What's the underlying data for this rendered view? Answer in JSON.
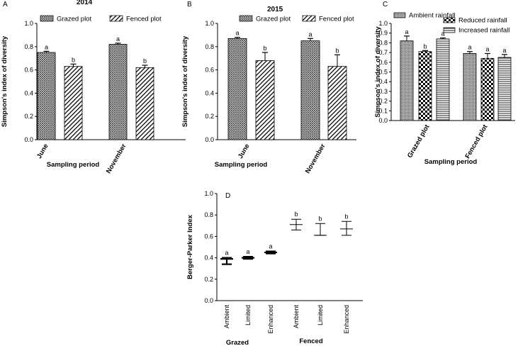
{
  "chart_data": [
    {
      "type": "bar",
      "panel": "A",
      "title": "2014",
      "xlabel": "Sampling period",
      "ylabel": "Simpson's index of diversity",
      "ylim": [
        0,
        1.0
      ],
      "yticks": [
        "0.0",
        "0.2",
        "0.4",
        "0.6",
        "0.8",
        "1.0"
      ],
      "categories": [
        "June",
        "November"
      ],
      "series": [
        {
          "name": "Grazed plot",
          "pattern": "crosshatch",
          "values": [
            0.75,
            0.82
          ],
          "errors": [
            0.01,
            0.01
          ],
          "labels": [
            "a",
            "a"
          ]
        },
        {
          "name": "Fenced plot",
          "pattern": "diagonal",
          "values": [
            0.63,
            0.62
          ],
          "errors": [
            0.02,
            0.02
          ],
          "labels": [
            "b",
            "b"
          ]
        }
      ]
    },
    {
      "type": "bar",
      "panel": "B",
      "title": "2015",
      "xlabel": "Sampling period",
      "ylabel": "Simpson's index of diversity",
      "ylim": [
        0,
        1.0
      ],
      "yticks": [
        "0.0",
        "0.2",
        "0.4",
        "0.6",
        "0.8",
        "1.0"
      ],
      "categories": [
        "June",
        "November"
      ],
      "series": [
        {
          "name": "Grazed plot",
          "pattern": "crosshatch",
          "values": [
            0.87,
            0.85
          ],
          "errors": [
            0.01,
            0.02
          ],
          "labels": [
            "a",
            "a"
          ]
        },
        {
          "name": "Fenced plot",
          "pattern": "diagonal",
          "values": [
            0.68,
            0.63
          ],
          "errors": [
            0.07,
            0.1
          ],
          "labels": [
            "b",
            "b"
          ]
        }
      ]
    },
    {
      "type": "bar",
      "panel": "C",
      "title": "",
      "xlabel": "Sampling period",
      "ylabel": "Simpson's index of diversity",
      "ylim": [
        0,
        1.0
      ],
      "yticks": [
        "0.0",
        "0.1",
        "0.2",
        "0.3",
        "0.4",
        "0.5",
        "0.6",
        "0.7",
        "0.8",
        "0.9",
        "1.0"
      ],
      "categories": [
        "Grazed plot",
        "Fenced plot"
      ],
      "series": [
        {
          "name": "Ambient rainfall",
          "pattern": "dense",
          "values": [
            0.82,
            0.69
          ],
          "errors": [
            0.05,
            0.02
          ],
          "labels": [
            "a",
            "a"
          ]
        },
        {
          "name": "Reduced rainfall",
          "pattern": "checker",
          "values": [
            0.71,
            0.64
          ],
          "errors": [
            0.01,
            0.05
          ],
          "labels": [
            "b",
            "a"
          ]
        },
        {
          "name": "Increased rainfall",
          "pattern": "hlines",
          "values": [
            0.84,
            0.65
          ],
          "errors": [
            0.01,
            0.03
          ],
          "labels": [
            "a",
            "a"
          ]
        }
      ]
    },
    {
      "type": "scatter",
      "panel": "D",
      "title": "",
      "xlabel": "",
      "ylabel": "Berger-Parker Index",
      "ylim": [
        0,
        1.0
      ],
      "yticks": [
        "0.0",
        "0.2",
        "0.4",
        "0.6",
        "0.8",
        "1.0"
      ],
      "categories": [
        "Ambient",
        "Limited",
        "Enhanced",
        "Ambient",
        "Limited",
        "Enhanced"
      ],
      "groups": [
        "Grazed",
        "Fenced"
      ],
      "points": [
        {
          "mean": 0.39,
          "low": 0.34,
          "high": 0.4,
          "label": "a",
          "bold": true
        },
        {
          "mean": 0.4,
          "low": 0.39,
          "high": 0.41,
          "label": "a",
          "bold": true
        },
        {
          "mean": 0.45,
          "low": 0.44,
          "high": 0.46,
          "label": "a",
          "bold": true
        },
        {
          "mean": 0.71,
          "low": 0.66,
          "high": 0.76,
          "label": "b",
          "bold": false
        },
        {
          "mean": 0.61,
          "low": 0.61,
          "high": 0.72,
          "label": "b",
          "bold": false
        },
        {
          "mean": 0.67,
          "low": 0.61,
          "high": 0.74,
          "label": "b",
          "bold": false
        }
      ]
    }
  ]
}
